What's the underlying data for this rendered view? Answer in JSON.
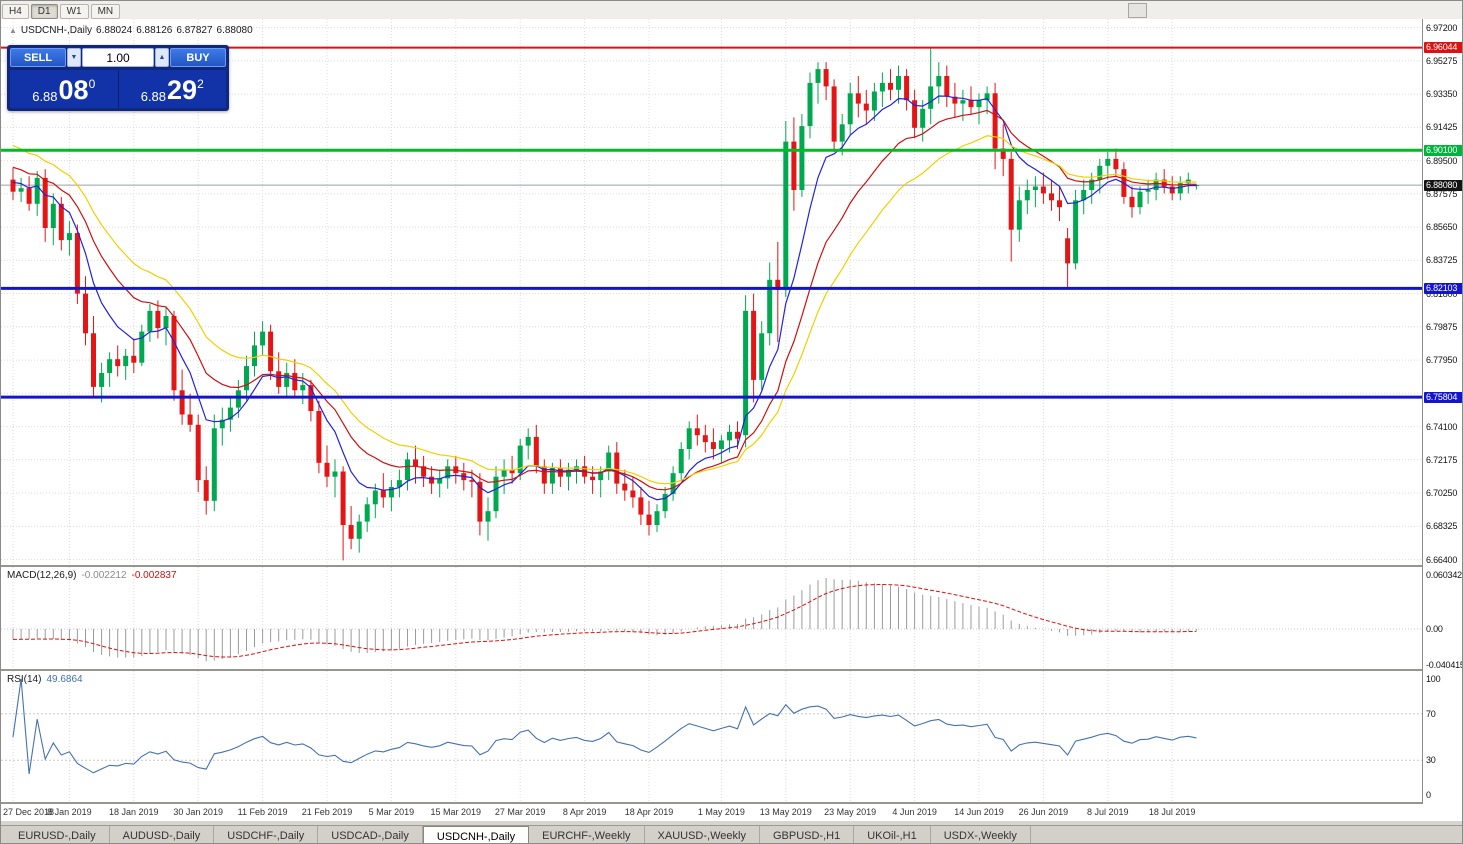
{
  "toolbar": {
    "timeframes": [
      "H4",
      "D1",
      "W1",
      "MN"
    ],
    "active": "D1"
  },
  "title": {
    "collapse_arrow": "▲",
    "symbol": "USDCNH-,Daily",
    "open": "6.88024",
    "high": "6.88126",
    "low": "6.87827",
    "close": "6.88080"
  },
  "one_click": {
    "sell": "SELL",
    "buy": "BUY",
    "volume": "1.00",
    "spinner_down": "▼",
    "spinner_up": "▲",
    "bid": {
      "base": "6.88",
      "pips": "08",
      "pipette": "0"
    },
    "ask": {
      "base": "6.88",
      "pips": "29",
      "pipette": "2"
    }
  },
  "price_scale": {
    "labels": [
      "6.97200",
      "6.95275",
      "6.93350",
      "6.91425",
      "6.89500",
      "6.87575",
      "6.85650",
      "6.83725",
      "6.81800",
      "6.79875",
      "6.77950",
      "6.76025",
      "6.74100",
      "6.72175",
      "6.70250",
      "6.68325",
      "6.66400"
    ],
    "marked": [
      {
        "text": "6.96044",
        "value": 6.96044,
        "bg": "#dd1111"
      },
      {
        "text": "6.90100",
        "value": 6.901,
        "bg": "#00b33c"
      },
      {
        "text": "6.88080",
        "value": 6.8808,
        "bg": "#141414"
      },
      {
        "text": "6.82103",
        "value": 6.82103,
        "bg": "#1414cc"
      },
      {
        "text": "6.75804",
        "value": 6.75804,
        "bg": "#1414cc"
      }
    ]
  },
  "chart_data": {
    "type": "candlestick",
    "symbol": "USDCNH",
    "timeframe": "Daily",
    "bull_color": "#00a94f",
    "bear_color": "#e31515",
    "current_price": 6.8808,
    "hlines": [
      {
        "price": 6.96044,
        "color": "#dd1111",
        "width": 2
      },
      {
        "price": 6.901,
        "color": "#00bb22",
        "width": 3
      },
      {
        "price": 6.82103,
        "color": "#1414cc",
        "width": 3
      },
      {
        "price": 6.75804,
        "color": "#1414cc",
        "width": 3
      }
    ],
    "moving_averages": [
      {
        "type": "ema",
        "period": 8,
        "seed": 6.884,
        "color": "#2222dd"
      },
      {
        "type": "ema",
        "period": 16,
        "seed": 6.893,
        "color": "#cc1111"
      },
      {
        "type": "ema",
        "period": 24,
        "seed": 6.906,
        "color": "#f0d000"
      }
    ],
    "x_labels": [
      {
        "text": "27 Dec 2018",
        "i": 0
      },
      {
        "text": "8 Jan 2019",
        "i": 7
      },
      {
        "text": "18 Jan 2019",
        "i": 15
      },
      {
        "text": "30 Jan 2019",
        "i": 23
      },
      {
        "text": "11 Feb 2019",
        "i": 31
      },
      {
        "text": "21 Feb 2019",
        "i": 39
      },
      {
        "text": "5 Mar 2019",
        "i": 47
      },
      {
        "text": "15 Mar 2019",
        "i": 55
      },
      {
        "text": "27 Mar 2019",
        "i": 63
      },
      {
        "text": "8 Apr 2019",
        "i": 71
      },
      {
        "text": "18 Apr 2019",
        "i": 79
      },
      {
        "text": "1 May 2019",
        "i": 88
      },
      {
        "text": "13 May 2019",
        "i": 96
      },
      {
        "text": "23 May 2019",
        "i": 104
      },
      {
        "text": "4 Jun 2019",
        "i": 112
      },
      {
        "text": "14 Jun 2019",
        "i": 120
      },
      {
        "text": "26 Jun 2019",
        "i": 128
      },
      {
        "text": "8 Jul 2019",
        "i": 136
      },
      {
        "text": "18 Jul 2019",
        "i": 144
      }
    ],
    "candles": [
      [
        6.884,
        6.891,
        6.872,
        6.877
      ],
      [
        6.877,
        6.885,
        6.871,
        6.879
      ],
      [
        6.879,
        6.886,
        6.866,
        6.87
      ],
      [
        6.87,
        6.889,
        6.863,
        6.885
      ],
      [
        6.885,
        6.89,
        6.848,
        6.856
      ],
      [
        6.856,
        6.876,
        6.846,
        6.87
      ],
      [
        6.87,
        6.874,
        6.843,
        6.849
      ],
      [
        6.849,
        6.86,
        6.84,
        6.853
      ],
      [
        6.853,
        6.858,
        6.812,
        6.818
      ],
      [
        6.818,
        6.828,
        6.788,
        6.795
      ],
      [
        6.795,
        6.805,
        6.758,
        6.764
      ],
      [
        6.764,
        6.778,
        6.755,
        6.772
      ],
      [
        6.772,
        6.784,
        6.764,
        6.78
      ],
      [
        6.78,
        6.788,
        6.77,
        6.776
      ],
      [
        6.776,
        6.786,
        6.768,
        6.782
      ],
      [
        6.782,
        6.792,
        6.772,
        6.778
      ],
      [
        6.778,
        6.8,
        6.776,
        6.796
      ],
      [
        6.796,
        6.812,
        6.79,
        6.808
      ],
      [
        6.808,
        6.814,
        6.792,
        6.798
      ],
      [
        6.798,
        6.81,
        6.788,
        6.805
      ],
      [
        6.805,
        6.808,
        6.756,
        6.762
      ],
      [
        6.762,
        6.774,
        6.742,
        6.748
      ],
      [
        6.748,
        6.76,
        6.738,
        6.742
      ],
      [
        6.742,
        6.748,
        6.703,
        6.71
      ],
      [
        6.71,
        6.718,
        6.69,
        6.698
      ],
      [
        6.698,
        6.748,
        6.692,
        6.74
      ],
      [
        6.74,
        6.752,
        6.73,
        6.745
      ],
      [
        6.745,
        6.758,
        6.738,
        6.752
      ],
      [
        6.752,
        6.768,
        6.746,
        6.762
      ],
      [
        6.762,
        6.782,
        6.756,
        6.776
      ],
      [
        6.776,
        6.796,
        6.77,
        6.788
      ],
      [
        6.788,
        6.802,
        6.782,
        6.796
      ],
      [
        6.796,
        6.8,
        6.768,
        6.773
      ],
      [
        6.773,
        6.784,
        6.76,
        6.764
      ],
      [
        6.764,
        6.778,
        6.758,
        6.772
      ],
      [
        6.772,
        6.78,
        6.758,
        6.762
      ],
      [
        6.762,
        6.772,
        6.754,
        6.765
      ],
      [
        6.765,
        6.768,
        6.744,
        6.75
      ],
      [
        6.75,
        6.756,
        6.714,
        6.72
      ],
      [
        6.72,
        6.73,
        6.706,
        6.712
      ],
      [
        6.712,
        6.722,
        6.7,
        6.715
      ],
      [
        6.715,
        6.718,
        6.6635,
        6.684
      ],
      [
        6.684,
        6.695,
        6.67,
        6.676
      ],
      [
        6.676,
        6.69,
        6.668,
        6.686
      ],
      [
        6.686,
        6.7,
        6.68,
        6.696
      ],
      [
        6.696,
        6.708,
        6.688,
        6.704
      ],
      [
        6.704,
        6.714,
        6.694,
        6.7
      ],
      [
        6.7,
        6.71,
        6.692,
        6.706
      ],
      [
        6.706,
        6.716,
        6.7,
        6.71
      ],
      [
        6.71,
        6.726,
        6.704,
        6.722
      ],
      [
        6.722,
        6.73,
        6.708,
        6.718
      ],
      [
        6.718,
        6.724,
        6.706,
        6.712
      ],
      [
        6.712,
        6.718,
        6.702,
        6.708
      ],
      [
        6.708,
        6.716,
        6.7,
        6.711
      ],
      [
        6.711,
        6.722,
        6.705,
        6.718
      ],
      [
        6.718,
        6.724,
        6.708,
        6.714
      ],
      [
        6.714,
        6.72,
        6.704,
        6.71
      ],
      [
        6.71,
        6.716,
        6.7,
        6.709
      ],
      [
        6.709,
        6.714,
        6.678,
        6.686
      ],
      [
        6.686,
        6.7,
        6.675,
        6.692
      ],
      [
        6.692,
        6.718,
        6.688,
        6.712
      ],
      [
        6.712,
        6.722,
        6.702,
        6.716
      ],
      [
        6.716,
        6.724,
        6.708,
        6.714
      ],
      [
        6.714,
        6.734,
        6.71,
        6.73
      ],
      [
        6.73,
        6.74,
        6.722,
        6.735
      ],
      [
        6.735,
        6.742,
        6.714,
        6.718
      ],
      [
        6.718,
        6.722,
        6.702,
        6.708
      ],
      [
        6.708,
        6.72,
        6.702,
        6.717
      ],
      [
        6.717,
        6.722,
        6.706,
        6.712
      ],
      [
        6.712,
        6.72,
        6.704,
        6.716
      ],
      [
        6.716,
        6.722,
        6.708,
        6.718
      ],
      [
        6.718,
        6.724,
        6.708,
        6.712
      ],
      [
        6.712,
        6.718,
        6.702,
        6.71
      ],
      [
        6.71,
        6.718,
        6.7,
        6.715
      ],
      [
        6.715,
        6.73,
        6.71,
        6.726
      ],
      [
        6.726,
        6.732,
        6.702,
        6.708
      ],
      [
        6.708,
        6.716,
        6.698,
        6.704
      ],
      [
        6.704,
        6.712,
        6.694,
        6.7
      ],
      [
        6.7,
        6.706,
        6.684,
        6.69
      ],
      [
        6.69,
        6.698,
        6.678,
        6.684
      ],
      [
        6.684,
        6.696,
        6.68,
        6.692
      ],
      [
        6.692,
        6.706,
        6.688,
        6.702
      ],
      [
        6.702,
        6.718,
        6.698,
        6.714
      ],
      [
        6.714,
        6.732,
        6.71,
        6.728
      ],
      [
        6.728,
        6.744,
        6.722,
        6.74
      ],
      [
        6.74,
        6.748,
        6.73,
        6.736
      ],
      [
        6.736,
        6.742,
        6.726,
        6.732
      ],
      [
        6.732,
        6.74,
        6.722,
        6.728
      ],
      [
        6.728,
        6.736,
        6.72,
        6.733
      ],
      [
        6.733,
        6.742,
        6.726,
        6.738
      ],
      [
        6.738,
        6.744,
        6.728,
        6.734
      ],
      [
        6.736,
        6.817,
        6.729,
        6.808
      ],
      [
        6.808,
        6.818,
        6.755,
        6.768
      ],
      [
        6.768,
        6.802,
        6.762,
        6.795
      ],
      [
        6.795,
        6.836,
        6.788,
        6.826
      ],
      [
        6.826,
        6.848,
        6.79,
        6.82
      ],
      [
        6.82,
        6.918,
        6.816,
        6.906
      ],
      [
        6.906,
        6.92,
        6.866,
        6.878
      ],
      [
        6.878,
        6.922,
        6.874,
        6.915
      ],
      [
        6.915,
        6.946,
        6.908,
        6.94
      ],
      [
        6.94,
        6.952,
        6.928,
        6.948
      ],
      [
        6.948,
        6.952,
        6.93,
        6.938
      ],
      [
        6.938,
        6.942,
        6.9,
        6.906
      ],
      [
        6.906,
        6.922,
        6.898,
        6.916
      ],
      [
        6.916,
        6.94,
        6.91,
        6.934
      ],
      [
        6.934,
        6.944,
        6.92,
        6.928
      ],
      [
        6.928,
        6.936,
        6.916,
        6.924
      ],
      [
        6.924,
        6.94,
        6.918,
        6.935
      ],
      [
        6.935,
        6.946,
        6.926,
        6.94
      ],
      [
        6.94,
        6.948,
        6.93,
        6.936
      ],
      [
        6.936,
        6.95,
        6.928,
        6.944
      ],
      [
        6.944,
        6.948,
        6.924,
        6.93
      ],
      [
        6.93,
        6.936,
        6.908,
        6.914
      ],
      [
        6.914,
        6.93,
        6.906,
        6.925
      ],
      [
        6.925,
        6.9604,
        6.916,
        6.938
      ],
      [
        6.938,
        6.952,
        6.928,
        6.944
      ],
      [
        6.944,
        6.95,
        6.926,
        6.932
      ],
      [
        6.932,
        6.94,
        6.92,
        6.928
      ],
      [
        6.928,
        6.936,
        6.918,
        6.93
      ],
      [
        6.93,
        6.938,
        6.922,
        6.926
      ],
      [
        6.926,
        6.934,
        6.916,
        6.93
      ],
      [
        6.93,
        6.938,
        6.922,
        6.934
      ],
      [
        6.934,
        6.94,
        6.89,
        6.902
      ],
      [
        6.902,
        6.916,
        6.886,
        6.896
      ],
      [
        6.896,
        6.9,
        6.8365,
        6.855
      ],
      [
        6.855,
        6.88,
        6.848,
        6.872
      ],
      [
        6.872,
        6.884,
        6.864,
        6.878
      ],
      [
        6.878,
        6.886,
        6.868,
        6.88
      ],
      [
        6.88,
        6.888,
        6.87,
        6.876
      ],
      [
        6.876,
        6.884,
        6.866,
        6.872
      ],
      [
        6.872,
        6.88,
        6.86,
        6.868
      ],
      [
        6.85,
        6.856,
        6.821,
        6.8355
      ],
      [
        6.8355,
        6.878,
        6.832,
        6.872
      ],
      [
        6.872,
        6.884,
        6.864,
        6.878
      ],
      [
        6.878,
        6.888,
        6.87,
        6.884
      ],
      [
        6.884,
        6.896,
        6.876,
        6.892
      ],
      [
        6.892,
        6.9,
        6.884,
        6.896
      ],
      [
        6.896,
        6.902,
        6.886,
        6.89
      ],
      [
        6.89,
        6.894,
        6.87,
        6.874
      ],
      [
        6.874,
        6.88,
        6.862,
        6.868
      ],
      [
        6.868,
        6.88,
        6.864,
        6.877
      ],
      [
        6.877,
        6.884,
        6.87,
        6.878
      ],
      [
        6.878,
        6.888,
        6.872,
        6.884
      ],
      [
        6.884,
        6.89,
        6.876,
        6.88
      ],
      [
        6.88,
        6.886,
        6.872,
        6.876
      ],
      [
        6.876,
        6.886,
        6.872,
        6.882
      ],
      [
        6.882,
        6.888,
        6.876,
        6.884
      ],
      [
        6.88024,
        6.88126,
        6.87827,
        6.8808
      ]
    ],
    "macd": {
      "label": "MACD(12,26,9)",
      "value": "-0.002212",
      "signal_value": "-0.002837",
      "fast": 12,
      "slow": 26,
      "signal": 9,
      "fast_seed": 6.884,
      "slow_seed": 6.896,
      "scale_labels": {
        "top": "0.060342",
        "zero": "0.00",
        "bottom": "-0.040415"
      },
      "histogram_color": "#9b9b9b",
      "signal_color": "#dd1111"
    },
    "rsi": {
      "label": "RSI(14)",
      "value": "49.6864",
      "period": 14,
      "levels": [
        70,
        30
      ],
      "scale_labels": [
        "100",
        "70",
        "30",
        "0"
      ],
      "color": "#4472b0"
    }
  },
  "tabs": [
    {
      "label": "EURUSD-,Daily",
      "active": false
    },
    {
      "label": "AUDUSD-,Daily",
      "active": false
    },
    {
      "label": "USDCHF-,Daily",
      "active": false
    },
    {
      "label": "USDCAD-,Daily",
      "active": false
    },
    {
      "label": "USDCNH-,Daily",
      "active": true
    },
    {
      "label": "EURCHF-,Weekly",
      "active": false
    },
    {
      "label": "XAUUSD-,Weekly",
      "active": false
    },
    {
      "label": "GBPUSD-,H1",
      "active": false
    },
    {
      "label": "UKOil-,H1",
      "active": false
    },
    {
      "label": "USDX-,Weekly",
      "active": false
    }
  ]
}
